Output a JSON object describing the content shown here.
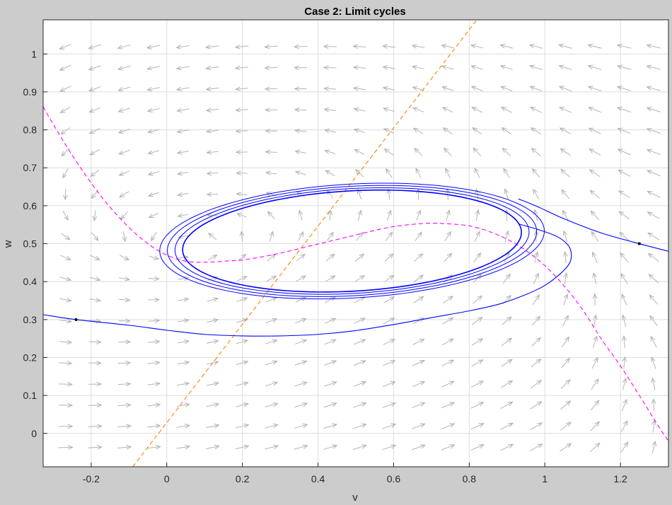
{
  "figure": {
    "background": "#cccccc",
    "axes_background": "#ffffff"
  },
  "chart_data": {
    "type": "line",
    "title": "Case 2: Limit cycles",
    "xlabel": "v",
    "ylabel": "w",
    "xlim": [
      -0.327,
      1.327
    ],
    "ylim": [
      -0.088,
      1.09
    ],
    "grid": true,
    "x_ticks": [
      -0.2,
      0,
      0.2,
      0.4,
      0.6,
      0.8,
      1,
      1.2
    ],
    "x_tick_labels": [
      "-0.2",
      "0",
      "0.2",
      "0.4",
      "0.6",
      "0.8",
      "1",
      "1.2"
    ],
    "y_ticks": [
      0,
      0.1,
      0.2,
      0.3,
      0.4,
      0.5,
      0.6,
      0.7,
      0.8,
      0.9,
      1
    ],
    "y_tick_labels": [
      "0",
      "0.1",
      "0.2",
      "0.3",
      "0.4",
      "0.5",
      "0.6",
      "0.7",
      "0.8",
      "0.9",
      "1"
    ],
    "vector_field": {
      "color": "#b4b4b4",
      "x_start": -0.268,
      "x_step": 0.0778,
      "x_count": 21,
      "y_start": -0.037,
      "y_step": 0.0556,
      "y_count": 20,
      "dynamics": "fitzhugh-nagumo"
    },
    "series": [
      {
        "role": "v-nullcline",
        "color": "#ff00ff",
        "dash": "dashed",
        "x": [
          -0.327,
          -0.3,
          -0.25,
          -0.2,
          -0.15,
          -0.1,
          -0.05,
          0,
          0.05,
          0.1,
          0.15,
          0.2,
          0.25,
          0.3,
          0.35,
          0.4,
          0.45,
          0.5,
          0.55,
          0.6,
          0.65,
          0.7,
          0.75,
          0.8,
          0.85,
          0.9,
          0.95,
          1.0,
          1.05,
          1.1,
          1.15,
          1.2,
          1.25,
          1.3,
          1.327
        ],
        "y": [
          0.861,
          0.814,
          0.733,
          0.66,
          0.596,
          0.543,
          0.5,
          0.47,
          0.454,
          0.451,
          0.454,
          0.457,
          0.465,
          0.475,
          0.487,
          0.499,
          0.511,
          0.523,
          0.535,
          0.545,
          0.551,
          0.554,
          0.552,
          0.547,
          0.533,
          0.512,
          0.482,
          0.442,
          0.39,
          0.326,
          0.248,
          0.178,
          0.1,
          0.02,
          -0.02
        ]
      },
      {
        "role": "w-nullcline",
        "color": "#ff8000",
        "dash": "dashed",
        "x": [
          -0.09,
          0.82
        ],
        "y": [
          -0.088,
          1.09
        ]
      },
      {
        "role": "trajectory",
        "color": "#0000ff",
        "x": [
          -0.327,
          -0.24,
          -0.1,
          0.0,
          0.1,
          0.2,
          0.3,
          0.4,
          0.5,
          0.6,
          0.7,
          0.8,
          0.88,
          0.95,
          1.0,
          1.04,
          1.065,
          1.07,
          1.06,
          1.03,
          0.98,
          0.93
        ],
        "y": [
          0.313,
          0.3,
          0.285,
          0.272,
          0.261,
          0.257,
          0.257,
          0.261,
          0.271,
          0.287,
          0.305,
          0.323,
          0.341,
          0.366,
          0.39,
          0.42,
          0.448,
          0.474,
          0.498,
          0.52,
          0.538,
          0.552
        ]
      },
      {
        "role": "trajectory",
        "color": "#0000ff",
        "x": [
          1.327,
          1.25,
          1.15,
          1.05,
          0.98,
          0.93
        ],
        "y": [
          0.48,
          0.5,
          0.528,
          0.566,
          0.598,
          0.618
        ]
      },
      {
        "role": "limit-cycle",
        "color": "#0000ff",
        "center": [
          0.49,
          0.507
        ],
        "half_axes": [
          0.455,
          0.132
        ],
        "tilt_deg": 10.0,
        "loops": 4
      }
    ],
    "markers": [
      {
        "x": -0.24,
        "y": 0.3,
        "color": "#000000"
      },
      {
        "x": 1.25,
        "y": 0.5,
        "color": "#000000"
      }
    ]
  }
}
